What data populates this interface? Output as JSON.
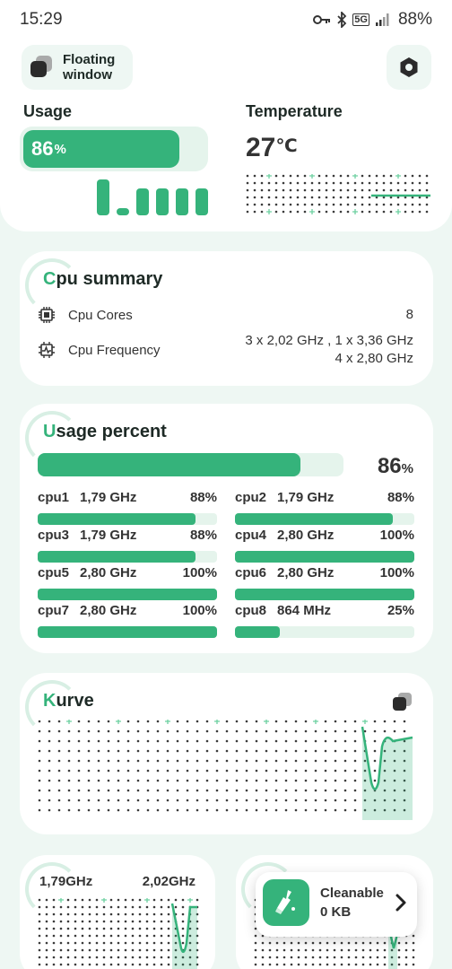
{
  "status_bar": {
    "time": "15:29",
    "network": "5G",
    "battery": "88%"
  },
  "header": {
    "floating_window_label_line1": "Floating",
    "floating_window_label_line2": "window",
    "usage_title": "Usage",
    "usage_value": "86",
    "usage_unit": "%",
    "usage_percent": 86,
    "temperature_title": "Temperature",
    "temperature_value": "27",
    "temperature_unit": "℃"
  },
  "cpu_summary": {
    "title_first": "C",
    "title_rest": "pu summary",
    "cores_label": "Cpu Cores",
    "cores_value": "8",
    "frequency_label": "Cpu Frequency",
    "frequency_line1": "3 x 2,02 GHz , 1 x 3,36 GHz",
    "frequency_line2": "4 x 2,80 GHz"
  },
  "usage_percent": {
    "title_first": "U",
    "title_rest": "sage percent",
    "total_value": "86",
    "total_unit": "%",
    "total_percent": 86,
    "cpus": [
      {
        "name": "cpu1",
        "freq": "1,79 GHz",
        "pct": "88%",
        "value": 88
      },
      {
        "name": "cpu2",
        "freq": "1,79 GHz",
        "pct": "88%",
        "value": 88
      },
      {
        "name": "cpu3",
        "freq": "1,79 GHz",
        "pct": "88%",
        "value": 88
      },
      {
        "name": "cpu4",
        "freq": "2,80 GHz",
        "pct": "100%",
        "value": 100
      },
      {
        "name": "cpu5",
        "freq": "2,80 GHz",
        "pct": "100%",
        "value": 100
      },
      {
        "name": "cpu6",
        "freq": "2,80 GHz",
        "pct": "100%",
        "value": 100
      },
      {
        "name": "cpu7",
        "freq": "2,80 GHz",
        "pct": "100%",
        "value": 100
      },
      {
        "name": "cpu8",
        "freq": "864 MHz",
        "pct": "25%",
        "value": 25
      }
    ]
  },
  "kurve": {
    "title_first": "K",
    "title_rest": "urve"
  },
  "frequency_card": {
    "min_label": "1,79GHz",
    "max_label": "2,02GHz"
  },
  "cleanable": {
    "title": "Cleanable",
    "size": "0 KB"
  },
  "colors": {
    "accent": "#35b37b",
    "accent_light": "#e5f4ec",
    "background": "#eef7f3"
  }
}
